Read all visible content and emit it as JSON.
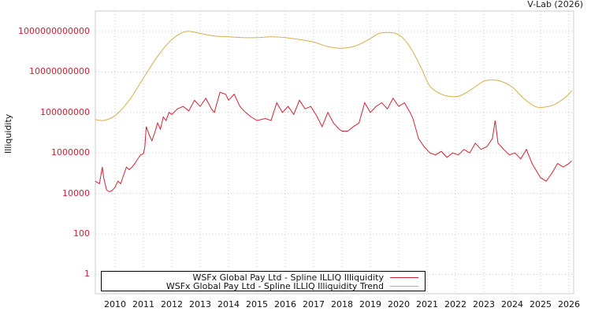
{
  "header": {
    "credit": "V-Lab (2026)"
  },
  "axes": {
    "ylabel": "Illiquidity",
    "yticks": [
      "1000000000000",
      "10000000000",
      "100000000",
      "1000000",
      "10000",
      "100",
      "1"
    ],
    "xticks": [
      "2010",
      "2011",
      "2012",
      "2013",
      "2014",
      "2015",
      "2016",
      "2017",
      "2018",
      "2019",
      "2020",
      "2021",
      "2022",
      "2023",
      "2024",
      "2025",
      "2026"
    ]
  },
  "legend": {
    "items": [
      {
        "label": "WSFx Global Pay Ltd - Spline ILLIQ Illiquidity",
        "color": "#d62031"
      },
      {
        "label": "WSFx Global Pay Ltd - Spline ILLIQ Illiquidity Trend",
        "color": "#d4b04a"
      }
    ]
  },
  "chart_data": {
    "type": "line",
    "title": "",
    "xlabel": "",
    "ylabel": "Illiquidity",
    "yscale": "log",
    "ylim": [
      0.1,
      10000000000000.0
    ],
    "xlim": [
      2009.3,
      2026.1
    ],
    "grid": true,
    "legend_position": "bottom-left inside",
    "series": [
      {
        "name": "WSFx Global Pay Ltd - Spline ILLIQ Illiquidity",
        "color": "#d62031",
        "x": [
          2009.3,
          2009.45,
          2009.55,
          2009.6,
          2009.7,
          2009.8,
          2009.9,
          2010.0,
          2010.1,
          2010.2,
          2010.3,
          2010.4,
          2010.5,
          2010.6,
          2010.7,
          2010.8,
          2010.9,
          2011.0,
          2011.05,
          2011.1,
          2011.2,
          2011.3,
          2011.4,
          2011.5,
          2011.6,
          2011.7,
          2011.8,
          2011.9,
          2012.0,
          2012.2,
          2012.4,
          2012.6,
          2012.8,
          2013.0,
          2013.2,
          2013.4,
          2013.5,
          2013.7,
          2013.9,
          2014.0,
          2014.2,
          2014.4,
          2014.6,
          2014.8,
          2015.0,
          2015.3,
          2015.5,
          2015.7,
          2015.9,
          2016.1,
          2016.3,
          2016.5,
          2016.7,
          2016.9,
          2017.1,
          2017.3,
          2017.5,
          2017.7,
          2017.9,
          2018.0,
          2018.2,
          2018.4,
          2018.6,
          2018.8,
          2019.0,
          2019.2,
          2019.4,
          2019.6,
          2019.8,
          2020.0,
          2020.2,
          2020.4,
          2020.5,
          2020.7,
          2020.9,
          2021.1,
          2021.3,
          2021.5,
          2021.7,
          2021.9,
          2022.1,
          2022.3,
          2022.5,
          2022.7,
          2022.9,
          2023.1,
          2023.3,
          2023.4,
          2023.5,
          2023.7,
          2023.9,
          2024.1,
          2024.3,
          2024.5,
          2024.7,
          2024.9,
          2025.0,
          2025.2,
          2025.4,
          2025.6,
          2025.8,
          2026.0,
          2026.1
        ],
        "values": [
          40000,
          30000,
          200000,
          60000,
          15000,
          12000,
          14000,
          20000,
          40000,
          30000,
          80000,
          200000,
          150000,
          200000,
          300000,
          500000,
          800000,
          900000,
          2000000,
          20000000,
          8000000,
          4000000,
          10000000,
          30000000,
          15000000,
          60000000,
          40000000,
          100000000,
          80000000,
          150000000,
          200000000,
          120000000,
          400000000,
          200000000,
          500000000,
          150000000,
          100000000,
          1000000000,
          800000000,
          400000000,
          800000000,
          200000000,
          100000000,
          60000000,
          40000000,
          50000000,
          40000000,
          300000000,
          100000000,
          200000000,
          80000000,
          400000000,
          150000000,
          200000000,
          70000000,
          20000000,
          100000000,
          30000000,
          15000000,
          12000000,
          12000000,
          20000000,
          30000000,
          300000000,
          100000000,
          200000000,
          300000000,
          150000000,
          500000000,
          200000000,
          300000000,
          100000000,
          50000000,
          5000000,
          2000000,
          1000000,
          800000,
          1200000,
          600000,
          1000000,
          800000,
          1500000,
          1000000,
          3000000,
          1500000,
          2000000,
          5000000,
          40000000,
          3000000,
          1500000,
          800000,
          1000000,
          500000,
          1500000,
          300000,
          100000,
          60000,
          40000,
          100000,
          300000,
          200000,
          300000,
          400000
        ],
        "y_range_note": "approx values read from log axis"
      },
      {
        "name": "WSFx Global Pay Ltd - Spline ILLIQ Illiquidity Trend",
        "color": "#d4b04a",
        "x": [
          2009.3,
          2009.6,
          2010.0,
          2010.5,
          2011.0,
          2011.5,
          2012.0,
          2012.5,
          2013.0,
          2013.5,
          2014.0,
          2014.5,
          2015.0,
          2015.5,
          2016.0,
          2016.5,
          2017.0,
          2017.5,
          2018.0,
          2018.5,
          2019.0,
          2019.3,
          2019.6,
          2019.9,
          2020.2,
          2020.5,
          2020.8,
          2021.1,
          2021.5,
          2021.9,
          2022.2,
          2022.6,
          2023.0,
          2023.3,
          2023.6,
          2024.0,
          2024.4,
          2024.8,
          2025.1,
          2025.5,
          2025.9,
          2026.1
        ],
        "values": [
          45000000,
          40000000,
          70000000,
          400000000,
          5000000000,
          60000000000,
          400000000000,
          1000000000000,
          800000000000,
          600000000000,
          550000000000,
          500000000000,
          500000000000,
          550000000000,
          500000000000,
          400000000000,
          300000000000,
          180000000000,
          150000000000,
          200000000000,
          450000000000,
          800000000000,
          900000000000,
          800000000000,
          400000000000,
          100000000000,
          15000000000,
          2000000000,
          800000000,
          600000000,
          700000000,
          1500000000,
          3500000000,
          4000000000,
          3500000000,
          1800000000,
          500000000,
          200000000,
          180000000,
          250000000,
          600000000,
          1200000000
        ]
      }
    ]
  }
}
